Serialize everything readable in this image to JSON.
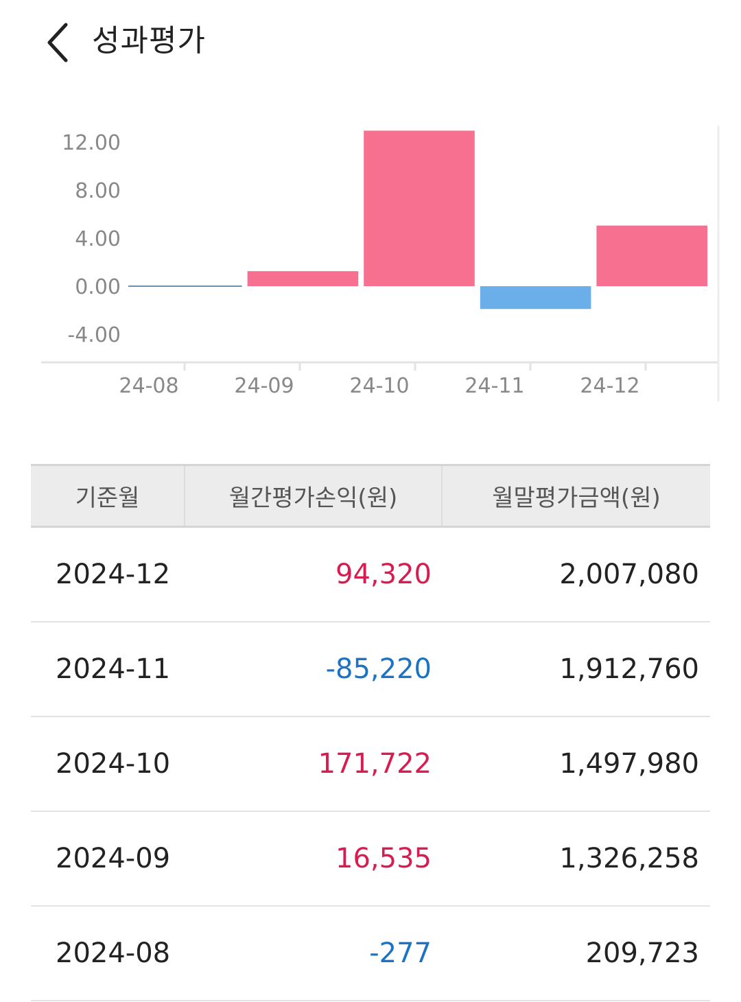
{
  "header": {
    "title": "성과평가",
    "back_icon": "chevron-left-icon"
  },
  "chart_data": {
    "type": "bar",
    "categories": [
      "24-08",
      "24-09",
      "24-10",
      "24-11",
      "24-12"
    ],
    "values": [
      -0.02,
      1.25,
      12.95,
      -1.9,
      5.05
    ],
    "y_ticks": [
      "12.00",
      "8.00",
      "4.00",
      "0.00",
      "-4.00"
    ],
    "y_tick_values": [
      12,
      8,
      4,
      0,
      -4
    ],
    "ylim": [
      -4,
      12
    ],
    "grid": false,
    "colors": {
      "positive": "#f7708f",
      "negative": "#6aaeea"
    }
  },
  "table": {
    "headers": [
      "기준월",
      "월간평가손익(원)",
      "월말평가금액(원)"
    ],
    "rows": [
      {
        "month": "2024-12",
        "pl": "94,320",
        "pl_sign": "pos",
        "total": "2,007,080"
      },
      {
        "month": "2024-11",
        "pl": "-85,220",
        "pl_sign": "neg",
        "total": "1,912,760"
      },
      {
        "month": "2024-10",
        "pl": "171,722",
        "pl_sign": "pos",
        "total": "1,497,980"
      },
      {
        "month": "2024-09",
        "pl": "16,535",
        "pl_sign": "pos",
        "total": "1,326,258"
      },
      {
        "month": "2024-08",
        "pl": "-277",
        "pl_sign": "neg",
        "total": "209,723"
      }
    ]
  },
  "colors": {
    "positive_text": "#d81b50",
    "negative_text": "#1a73c4"
  }
}
